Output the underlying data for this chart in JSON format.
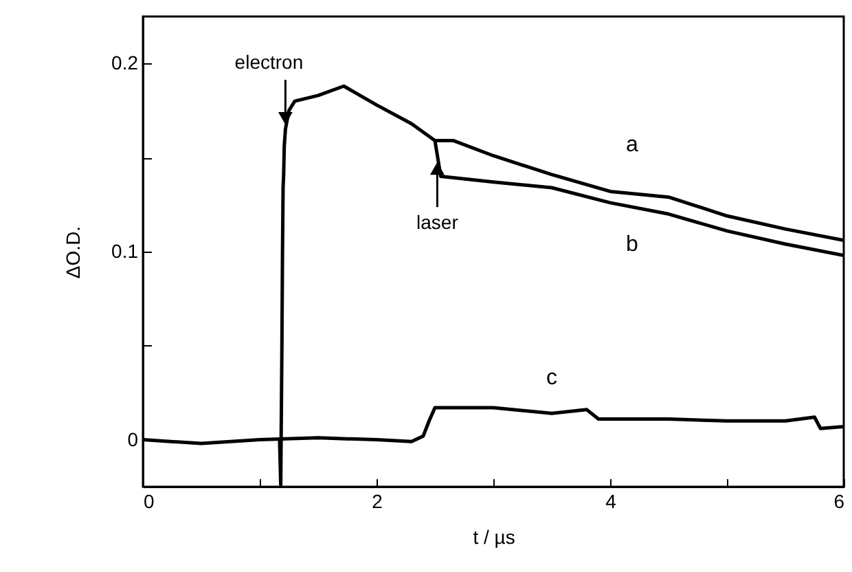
{
  "chart_data": {
    "type": "line",
    "xlabel": "t / µs",
    "ylabel": "ΔO.D.",
    "xlim": [
      0,
      6
    ],
    "ylim": [
      -0.025,
      0.225
    ],
    "xticks": [
      0,
      {
        "value": 1,
        "label": null
      },
      2,
      {
        "value": 3,
        "label": null
      },
      4,
      {
        "value": 5,
        "label": null
      },
      6
    ],
    "yticks": [
      0,
      {
        "value": 0.05,
        "label": null
      },
      0.1,
      {
        "value": 0.15,
        "label": null
      },
      0.2
    ],
    "grid": false,
    "marker": "none",
    "line_style": "solid",
    "series": [
      {
        "name": "a",
        "color": "#000000",
        "x": [
          1.17,
          1.18,
          1.19,
          1.195,
          1.2,
          1.205,
          1.21,
          1.22,
          1.25,
          1.3,
          1.5,
          1.72,
          2.0,
          2.3,
          2.5,
          2.66,
          3.0,
          3.5,
          4.0,
          4.5,
          5.0,
          5.5,
          6.0
        ],
        "values": [
          0.0,
          -0.024,
          0.05,
          0.099,
          0.134,
          0.141,
          0.156,
          0.165,
          0.175,
          0.18,
          0.183,
          0.188,
          0.178,
          0.168,
          0.159,
          0.159,
          0.151,
          0.141,
          0.132,
          0.129,
          0.119,
          0.112,
          0.106
        ]
      },
      {
        "name": "b",
        "color": "#000000",
        "x": [
          2.5,
          2.55,
          3.0,
          3.5,
          4.0,
          4.5,
          5.0,
          5.5,
          6.0
        ],
        "values": [
          0.159,
          0.14,
          0.137,
          0.134,
          0.126,
          0.12,
          0.111,
          0.104,
          0.098
        ]
      },
      {
        "name": "c",
        "color": "#000000",
        "x": [
          0,
          0.5,
          1.0,
          1.5,
          2.0,
          2.3,
          2.4,
          2.45,
          2.5,
          3.0,
          3.5,
          3.8,
          3.9,
          4.5,
          5.0,
          5.5,
          5.75,
          5.8,
          6.0
        ],
        "values": [
          0.0,
          -0.002,
          0.0,
          0.001,
          0.0,
          -0.001,
          0.002,
          0.01,
          0.017,
          0.017,
          0.014,
          0.016,
          0.011,
          0.011,
          0.01,
          0.01,
          0.012,
          0.006,
          0.007
        ]
      }
    ],
    "annotations": [
      {
        "text": "electron",
        "x": 1.22,
        "y": 0.165
      },
      {
        "text": "laser",
        "x": 2.52,
        "y": 0.15
      }
    ]
  }
}
